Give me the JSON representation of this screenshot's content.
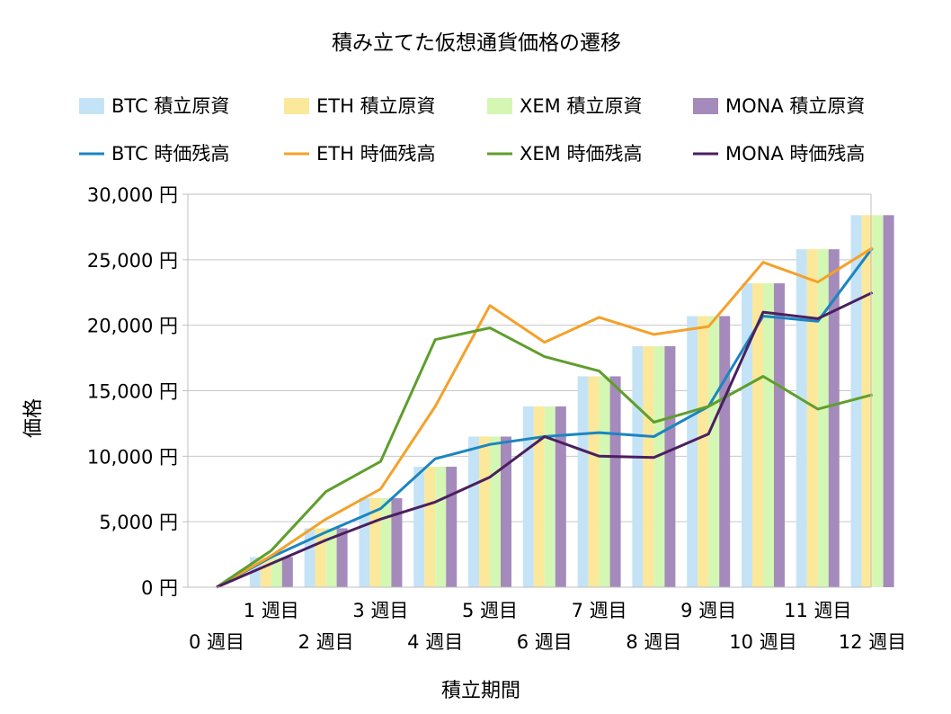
{
  "chart_data": {
    "type": "bar+line",
    "title": "積み立てた仮想通貨価格の遷移",
    "xlabel": "積立期間",
    "ylabel": "価格",
    "ylim": [
      0,
      30000
    ],
    "yticks": [
      0,
      5000,
      10000,
      15000,
      20000,
      25000,
      30000
    ],
    "ytick_labels": [
      "0 円",
      "5,000 円",
      "10,000 円",
      "15,000 円",
      "20,000 円",
      "25,000 円",
      "30,000 円"
    ],
    "categories": [
      "0 週目",
      "1 週目",
      "2 週目",
      "3 週目",
      "4 週目",
      "5 週目",
      "6 週目",
      "7 週目",
      "8 週目",
      "9 週目",
      "10 週目",
      "11 週目",
      "12 週目"
    ],
    "grid": true,
    "legend_position": "top",
    "bar_series": [
      {
        "name": "BTC  積立原資",
        "color": "#c5e3f6",
        "values": [
          0,
          2300,
          4500,
          6800,
          9200,
          11500,
          13800,
          16100,
          18400,
          20700,
          23200,
          25800,
          28400
        ]
      },
      {
        "name": "ETH  積立原資",
        "color": "#fbe89a",
        "values": [
          0,
          2300,
          4500,
          6800,
          9200,
          11500,
          13800,
          16100,
          18400,
          20700,
          23200,
          25800,
          28400
        ]
      },
      {
        "name": "XEM  積立原資",
        "color": "#d4f7b4",
        "values": [
          0,
          2300,
          4500,
          6800,
          9200,
          11500,
          13800,
          16100,
          18400,
          20700,
          23200,
          25800,
          28400
        ]
      },
      {
        "name": "MONA  積立原資",
        "color": "#a48bbb",
        "values": [
          0,
          2300,
          4500,
          6800,
          9200,
          11500,
          13800,
          16100,
          18400,
          20700,
          23200,
          25800,
          28400
        ]
      }
    ],
    "line_series": [
      {
        "name": "BTC  時価残高",
        "color": "#1c85c0",
        "values": [
          0,
          2300,
          4200,
          6000,
          9800,
          10900,
          11500,
          11800,
          11500,
          13800,
          20700,
          20300,
          25900
        ]
      },
      {
        "name": "ETH  時価残高",
        "color": "#f4a12a",
        "values": [
          0,
          2400,
          5200,
          7500,
          13800,
          21500,
          18700,
          20600,
          19300,
          19900,
          24800,
          23300,
          25900
        ]
      },
      {
        "name": "XEM  時価残高",
        "color": "#5f9e2e",
        "values": [
          0,
          2800,
          7300,
          9600,
          18900,
          19800,
          17600,
          16500,
          12600,
          13800,
          16100,
          13600,
          14700
        ]
      },
      {
        "name": "MONA  時価残高",
        "color": "#4b1f5f",
        "values": [
          0,
          1800,
          3600,
          5200,
          6500,
          8400,
          11500,
          10000,
          9900,
          11700,
          21000,
          20500,
          22500
        ]
      }
    ]
  }
}
